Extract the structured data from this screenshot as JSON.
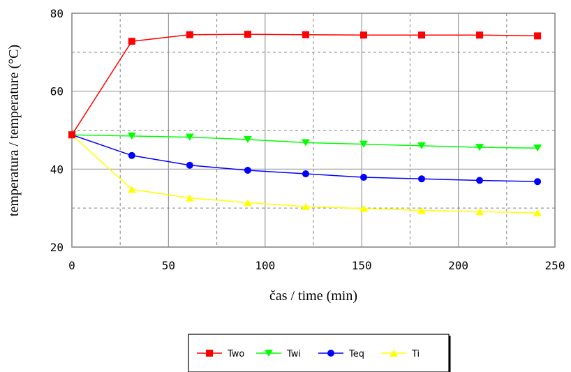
{
  "chart_data": {
    "type": "line",
    "xlabel": "čas / time (min)",
    "ylabel": "temperatura / temperature (°C)",
    "xlim": [
      0,
      250
    ],
    "ylim": [
      20,
      80
    ],
    "x_ticks": [
      "0",
      "50",
      "100",
      "150",
      "200",
      "250"
    ],
    "y_ticks": [
      "20",
      "40",
      "60",
      "80"
    ],
    "grid": true,
    "legend_position": "bottom-center",
    "x": [
      0,
      31,
      61,
      91,
      121,
      151,
      181,
      211,
      241
    ],
    "series": [
      {
        "name": "Two",
        "color": "#ff0000",
        "marker": "square",
        "values": [
          48.8,
          72.8,
          74.5,
          74.6,
          74.5,
          74.4,
          74.4,
          74.4,
          74.2
        ]
      },
      {
        "name": "Twi",
        "color": "#00ff00",
        "marker": "triangle-down",
        "values": [
          48.8,
          48.5,
          48.2,
          47.6,
          46.8,
          46.4,
          46.0,
          45.6,
          45.4
        ]
      },
      {
        "name": "Teq",
        "color": "#0000ff",
        "marker": "circle",
        "values": [
          48.8,
          43.5,
          41.0,
          39.7,
          38.8,
          37.9,
          37.5,
          37.1,
          36.8
        ]
      },
      {
        "name": "Ti",
        "color": "#ffff00",
        "marker": "triangle-up",
        "values": [
          48.8,
          34.8,
          32.6,
          31.4,
          30.4,
          29.9,
          29.4,
          29.1,
          28.8
        ]
      }
    ]
  }
}
